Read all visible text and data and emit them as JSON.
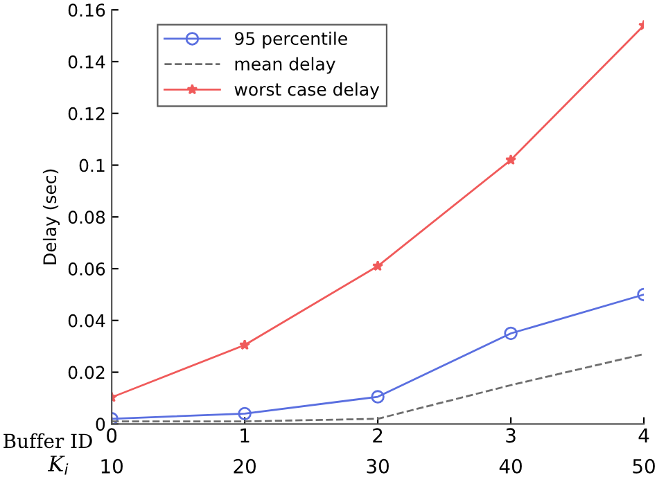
{
  "chart_data": {
    "type": "line",
    "xlabel": "Buffer ID",
    "ylabel": "Delay (sec)",
    "x2label": "K$_{i}$",
    "x": [
      0,
      1,
      2,
      3,
      4
    ],
    "xlim": [
      0,
      4
    ],
    "xticks": [
      0,
      1,
      2,
      3,
      4
    ],
    "x2lim": [
      10,
      50
    ],
    "x2ticks": [
      10,
      20,
      30,
      40,
      50
    ],
    "ylim": [
      0,
      0.16
    ],
    "yticks": [
      0,
      0.02,
      0.04,
      0.06,
      0.08,
      0.1,
      0.12,
      0.14,
      0.16
    ],
    "series": [
      {
        "name": "95 percentile",
        "color": "#5a6fe0",
        "marker": "circle",
        "line_style": "solid",
        "values": [
          0.002,
          0.004,
          0.0105,
          0.035,
          0.05
        ]
      },
      {
        "name": "mean delay",
        "color": "#6e6e6e",
        "marker": "none",
        "line_style": "dashed",
        "values": [
          0.001,
          0.001,
          0.002,
          0.015,
          0.027
        ]
      },
      {
        "name": "worst case delay",
        "color": "#f05a5a",
        "marker": "star",
        "line_style": "solid",
        "values": [
          0.0103,
          0.0305,
          0.061,
          0.102,
          0.154
        ]
      }
    ],
    "grid": false,
    "legend": "top left"
  }
}
